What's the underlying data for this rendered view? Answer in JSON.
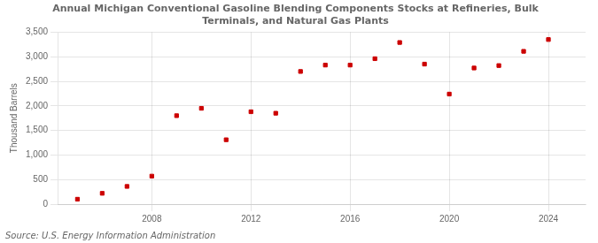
{
  "chart_data": {
    "type": "scatter",
    "title": [
      "Annual Michigan Conventional Gasoline Blending Components Stocks at Refineries, Bulk",
      "Terminals, and Natural Gas Plants"
    ],
    "ylabel": "Thousand Barrels",
    "annotations": [
      "Source: U.S. Energy Information Administration"
    ],
    "x": [
      2005,
      2006,
      2007,
      2008,
      2009,
      2010,
      2011,
      2012,
      2013,
      2014,
      2015,
      2016,
      2017,
      2018,
      2019,
      2020,
      2021,
      2022,
      2023,
      2024
    ],
    "values": [
      100,
      220,
      360,
      570,
      1800,
      1950,
      1310,
      1880,
      1850,
      2700,
      2830,
      2830,
      2960,
      3290,
      2850,
      2240,
      2770,
      2820,
      3110,
      3350
    ],
    "color": "#cc0000",
    "marker": "square",
    "xlim": [
      2004.2,
      2025.5
    ],
    "xticks": [
      2008,
      2012,
      2016,
      2020,
      2024
    ],
    "ylim": [
      0,
      3500
    ],
    "yticks": [
      0,
      500,
      {
        "value": 1000,
        "label": "1,000"
      },
      {
        "value": 1500,
        "label": "1,500"
      },
      {
        "value": 2000,
        "label": "2,000"
      },
      {
        "value": 2500,
        "label": "2,500"
      },
      {
        "value": 3000,
        "label": "3,000"
      },
      {
        "value": 3500,
        "label": "3,500"
      }
    ],
    "grid": true
  }
}
